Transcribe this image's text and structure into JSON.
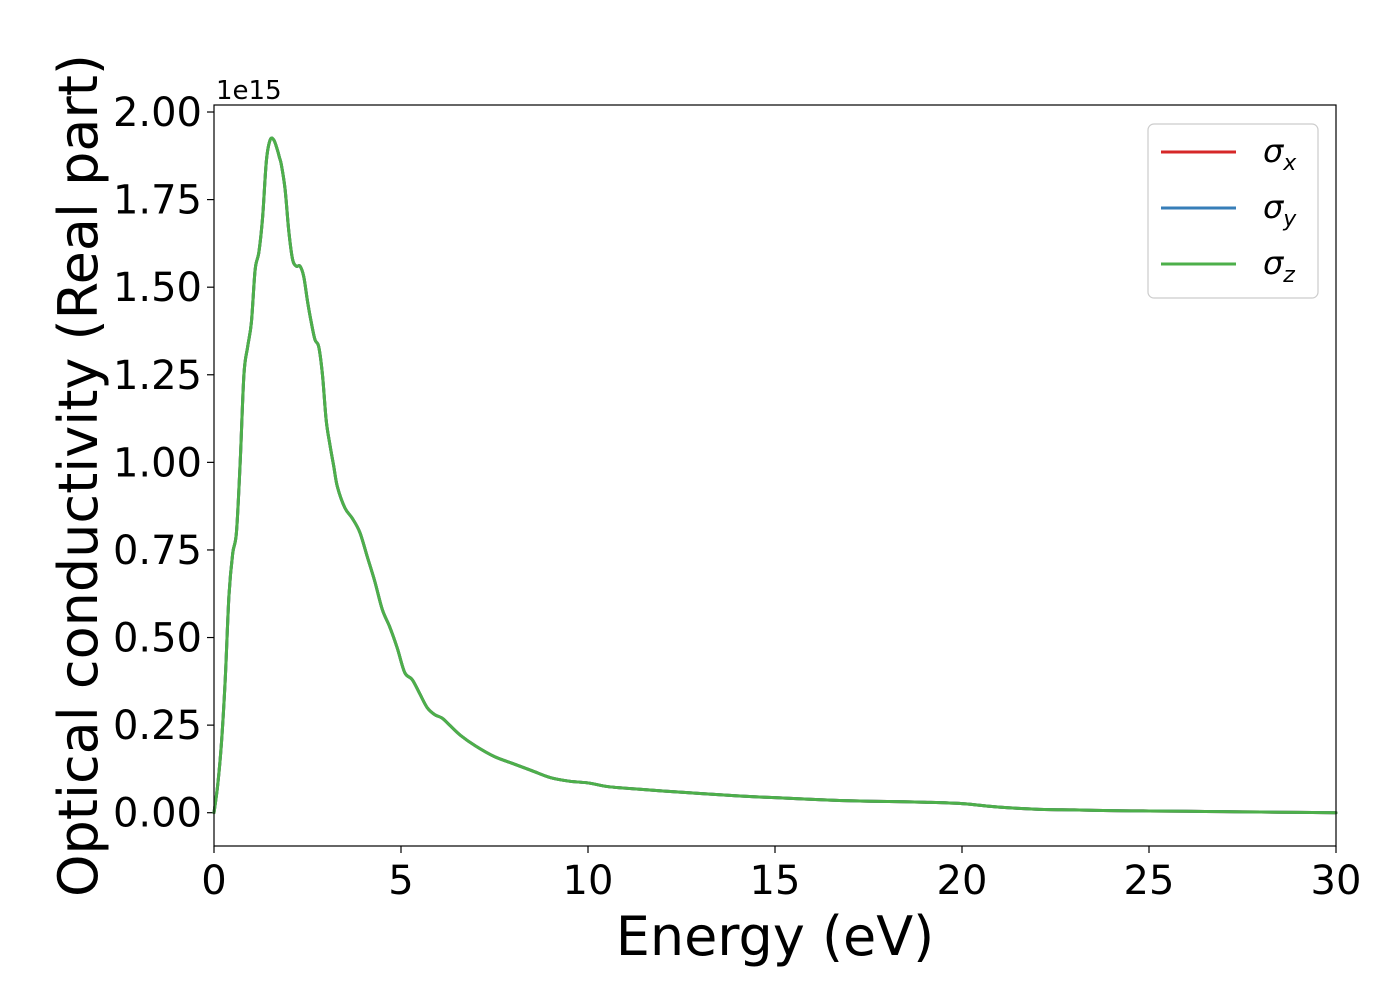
{
  "chart_data": {
    "type": "line",
    "xlabel": "Energy (eV)",
    "ylabel": "Optical conductivity (Real part)",
    "y_offset_text": "1e15",
    "xlim": [
      0,
      30
    ],
    "ylim": [
      -0.095,
      2.02
    ],
    "y_multiplier": 1000000000000000.0,
    "x_ticks": [
      0,
      5,
      10,
      15,
      20,
      25,
      30
    ],
    "x_tick_labels": [
      "0",
      "5",
      "10",
      "15",
      "20",
      "25",
      "30"
    ],
    "y_ticks": [
      0.0,
      0.25,
      0.5,
      0.75,
      1.0,
      1.25,
      1.5,
      1.75,
      2.0
    ],
    "y_tick_labels": [
      "0.00",
      "0.25",
      "0.50",
      "0.75",
      "1.00",
      "1.25",
      "1.50",
      "1.75",
      "2.00"
    ],
    "grid": false,
    "legend_position": "top-right",
    "x": [
      0,
      0.1,
      0.2,
      0.3,
      0.4,
      0.5,
      0.6,
      0.7,
      0.8,
      0.9,
      1.0,
      1.1,
      1.2,
      1.3,
      1.4,
      1.5,
      1.6,
      1.7,
      1.75,
      1.8,
      1.9,
      2.0,
      2.1,
      2.2,
      2.3,
      2.4,
      2.5,
      2.6,
      2.7,
      2.8,
      2.9,
      3.0,
      3.1,
      3.2,
      3.3,
      3.5,
      3.7,
      3.9,
      4.1,
      4.3,
      4.5,
      4.7,
      4.9,
      5.1,
      5.3,
      5.5,
      5.7,
      5.9,
      6.1,
      6.3,
      6.6,
      7.0,
      7.5,
      8.0,
      8.5,
      9.0,
      9.5,
      10.0,
      10.5,
      11.0,
      12.0,
      13.0,
      14.0,
      15.0,
      16.0,
      17.0,
      18.0,
      19.0,
      20.0,
      21.0,
      22.0,
      23.0,
      24.0,
      25.0,
      26.0,
      27.0,
      28.0,
      29.0,
      30.0
    ],
    "series": [
      {
        "name": "σx",
        "label_base": "σ",
        "label_sub": "x",
        "color": "#d62728",
        "values": [
          0.0,
          0.08,
          0.2,
          0.38,
          0.62,
          0.74,
          0.8,
          1.0,
          1.25,
          1.33,
          1.4,
          1.55,
          1.6,
          1.7,
          1.86,
          1.92,
          1.92,
          1.89,
          1.87,
          1.85,
          1.78,
          1.66,
          1.58,
          1.56,
          1.56,
          1.53,
          1.46,
          1.4,
          1.35,
          1.33,
          1.25,
          1.12,
          1.05,
          0.99,
          0.93,
          0.87,
          0.84,
          0.8,
          0.73,
          0.66,
          0.58,
          0.53,
          0.47,
          0.4,
          0.38,
          0.34,
          0.3,
          0.28,
          0.27,
          0.25,
          0.22,
          0.19,
          0.16,
          0.14,
          0.12,
          0.1,
          0.09,
          0.085,
          0.075,
          0.07,
          0.062,
          0.055,
          0.048,
          0.043,
          0.038,
          0.034,
          0.032,
          0.03,
          0.026,
          0.016,
          0.01,
          0.008,
          0.006,
          0.005,
          0.004,
          0.003,
          0.002,
          0.001,
          0.0
        ]
      },
      {
        "name": "σy",
        "label_base": "σ",
        "label_sub": "y",
        "color": "#377eb8",
        "values": [
          0.0,
          0.08,
          0.2,
          0.38,
          0.62,
          0.74,
          0.8,
          1.0,
          1.25,
          1.33,
          1.4,
          1.55,
          1.6,
          1.7,
          1.86,
          1.92,
          1.92,
          1.89,
          1.87,
          1.85,
          1.78,
          1.66,
          1.58,
          1.56,
          1.56,
          1.53,
          1.46,
          1.4,
          1.35,
          1.33,
          1.25,
          1.12,
          1.05,
          0.99,
          0.93,
          0.87,
          0.84,
          0.8,
          0.73,
          0.66,
          0.58,
          0.53,
          0.47,
          0.4,
          0.38,
          0.34,
          0.3,
          0.28,
          0.27,
          0.25,
          0.22,
          0.19,
          0.16,
          0.14,
          0.12,
          0.1,
          0.09,
          0.085,
          0.075,
          0.07,
          0.062,
          0.055,
          0.048,
          0.043,
          0.038,
          0.034,
          0.032,
          0.03,
          0.026,
          0.016,
          0.01,
          0.008,
          0.006,
          0.005,
          0.004,
          0.003,
          0.002,
          0.001,
          0.0
        ]
      },
      {
        "name": "σz",
        "label_base": "σ",
        "label_sub": "z",
        "color": "#4daf4a",
        "values": [
          0.0,
          0.08,
          0.2,
          0.38,
          0.62,
          0.74,
          0.8,
          1.0,
          1.25,
          1.33,
          1.4,
          1.55,
          1.6,
          1.7,
          1.86,
          1.92,
          1.92,
          1.89,
          1.87,
          1.85,
          1.78,
          1.66,
          1.58,
          1.56,
          1.56,
          1.53,
          1.46,
          1.4,
          1.35,
          1.33,
          1.25,
          1.12,
          1.05,
          0.99,
          0.93,
          0.87,
          0.84,
          0.8,
          0.73,
          0.66,
          0.58,
          0.53,
          0.47,
          0.4,
          0.38,
          0.34,
          0.3,
          0.28,
          0.27,
          0.25,
          0.22,
          0.19,
          0.16,
          0.14,
          0.12,
          0.1,
          0.09,
          0.085,
          0.075,
          0.07,
          0.062,
          0.055,
          0.048,
          0.043,
          0.038,
          0.034,
          0.032,
          0.03,
          0.026,
          0.016,
          0.01,
          0.008,
          0.006,
          0.005,
          0.004,
          0.003,
          0.002,
          0.001,
          0.0
        ]
      }
    ]
  }
}
